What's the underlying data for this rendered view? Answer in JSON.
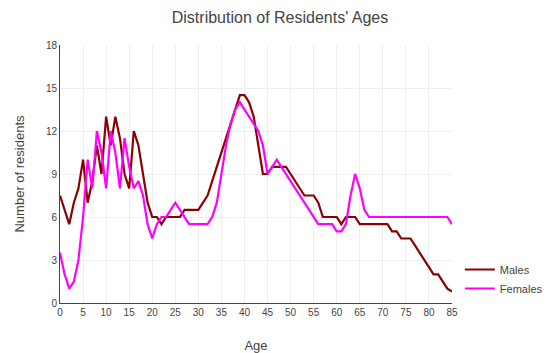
{
  "chart_data": {
    "type": "line",
    "title": "Distribution of Residents' Ages",
    "x_label": "Age",
    "y_label": "Number of residents",
    "x": [
      0,
      1,
      2,
      3,
      4,
      5,
      6,
      7,
      8,
      9,
      10,
      11,
      12,
      13,
      14,
      15,
      16,
      17,
      18,
      19,
      20,
      21,
      22,
      23,
      24,
      25,
      26,
      27,
      28,
      29,
      30,
      31,
      32,
      33,
      34,
      35,
      36,
      37,
      38,
      39,
      40,
      41,
      42,
      43,
      44,
      45,
      46,
      47,
      48,
      49,
      50,
      51,
      52,
      53,
      54,
      55,
      56,
      57,
      58,
      59,
      60,
      61,
      62,
      63,
      64,
      65,
      66,
      67,
      68,
      69,
      70,
      71,
      72,
      73,
      74,
      75,
      76,
      77,
      78,
      79,
      80,
      81,
      82,
      83,
      84,
      85
    ],
    "series": [
      {
        "name": "Males",
        "color": "#8B0000",
        "values": [
          7.5,
          6.5,
          5.5,
          7.0,
          8.0,
          10.0,
          7.0,
          8.5,
          11.0,
          9.0,
          13.0,
          11.0,
          13.0,
          11.5,
          9.0,
          8.0,
          12.0,
          11.0,
          9.0,
          7.0,
          6.0,
          6.0,
          5.5,
          6.0,
          6.0,
          6.0,
          6.0,
          6.5,
          6.5,
          6.5,
          6.5,
          7.0,
          7.5,
          8.5,
          9.5,
          10.5,
          11.5,
          12.5,
          13.5,
          14.5,
          14.5,
          14.0,
          13.0,
          11.0,
          9.0,
          9.0,
          9.5,
          9.5,
          9.5,
          9.5,
          9.0,
          8.5,
          8.0,
          7.5,
          7.5,
          7.5,
          7.0,
          6.0,
          6.0,
          6.0,
          6.0,
          5.5,
          6.0,
          6.0,
          6.0,
          5.5,
          5.5,
          5.5,
          5.5,
          5.5,
          5.5,
          5.5,
          5.0,
          5.0,
          4.5,
          4.5,
          4.5,
          4.0,
          3.5,
          3.0,
          2.5,
          2.0,
          2.0,
          1.5,
          1.0,
          0.8
        ]
      },
      {
        "name": "Females",
        "color": "#FF00FF",
        "values": [
          3.5,
          2.0,
          1.0,
          1.5,
          3.0,
          6.0,
          10.0,
          8.0,
          12.0,
          10.5,
          8.0,
          12.0,
          10.5,
          8.0,
          11.5,
          9.5,
          8.0,
          8.5,
          7.5,
          5.5,
          4.5,
          5.5,
          6.0,
          6.0,
          6.5,
          7.0,
          6.5,
          6.0,
          5.5,
          5.5,
          5.5,
          5.5,
          5.5,
          6.0,
          7.0,
          9.0,
          11.0,
          12.5,
          13.5,
          14.0,
          13.5,
          13.0,
          12.5,
          12.0,
          11.0,
          9.0,
          9.5,
          10.0,
          9.5,
          9.0,
          8.5,
          8.0,
          7.5,
          7.0,
          6.5,
          6.0,
          5.5,
          5.5,
          5.5,
          5.5,
          5.0,
          5.0,
          5.5,
          7.5,
          9.0,
          8.0,
          6.5,
          6.0,
          6.0,
          6.0,
          6.0,
          6.0,
          6.0,
          6.0,
          6.0,
          6.0,
          6.0,
          6.0,
          6.0,
          6.0,
          6.0,
          6.0,
          6.0,
          6.0,
          6.0,
          5.5
        ]
      }
    ],
    "xlim": [
      0,
      85
    ],
    "ylim": [
      0,
      18
    ],
    "xticks": [
      0,
      5,
      10,
      15,
      20,
      25,
      30,
      35,
      40,
      45,
      50,
      55,
      60,
      65,
      70,
      75,
      80,
      85
    ],
    "yticks": [
      0,
      3,
      6,
      9,
      12,
      15,
      18
    ],
    "grid": true,
    "legend": "lower right"
  }
}
